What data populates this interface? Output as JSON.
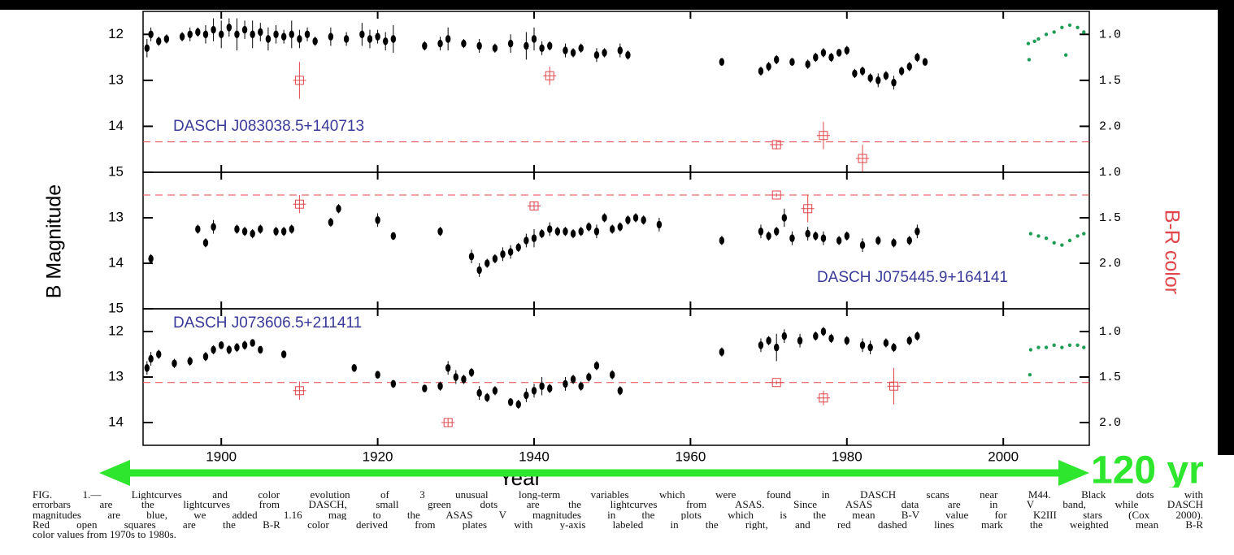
{
  "y_label": "B Magnitude",
  "y2_label": "B-R color",
  "x_label": "Year",
  "arrow_label": "120 yr",
  "caption": [
    "FIG. 1.— Lightcurves and color evolution of 3 unusual long-term variables which were found in DASCH scans near M44. Black dots with",
    "errorbars are the lightcurves from DASCH, small green dots are the lightcurves from ASAS. Since ASAS data are in V band, while DASCH",
    "magnitudes are blue, we added 1.16 mag to the ASAS V magnitudes in the plots which is the mean B-V value for K2III stars (Cox 2000).",
    "Red open squares are the B-R color derived from plates with y-axis labeled in the right, and red dashed lines mark the weighted mean B-R",
    "color values from 1970s to 1980s."
  ],
  "chart_data": [
    {
      "type": "scatter",
      "annotation": "DASCH J083038.5+140713",
      "xlim": [
        1890,
        2011
      ],
      "xticks": [
        1900,
        1920,
        1940,
        1960,
        1980,
        2000
      ],
      "x_tick_labels": false,
      "ylim": [
        15,
        11.5
      ],
      "yticks": [
        12,
        13,
        14,
        15
      ],
      "y2lim": [
        2.5,
        0.75
      ],
      "y2ticks": [
        {
          "value": 1,
          "label": "1.0"
        },
        1.5,
        {
          "value": 2,
          "label": "2.0"
        }
      ],
      "mean_color": 2.17,
      "series": [
        {
          "color": "#000000",
          "kind": "dasch",
          "x": [
            1890.5,
            1891,
            1892,
            1893,
            1895,
            1896,
            1897,
            1898,
            1899,
            1900,
            1901,
            1902,
            1903,
            1904,
            1905,
            1906,
            1907,
            1908,
            1909,
            1910,
            1911,
            1912,
            1914,
            1916,
            1918,
            1919,
            1920,
            1921,
            1922,
            1926,
            1928,
            1929,
            1931,
            1933,
            1935,
            1937,
            1939,
            1940,
            1941,
            1942,
            1944,
            1945,
            1946,
            1948,
            1949,
            1951,
            1952,
            1964,
            1969,
            1970,
            1971,
            1973,
            1975,
            1976,
            1977,
            1978,
            1979,
            1980,
            1981,
            1982,
            1983,
            1984,
            1985,
            1986,
            1987,
            1988,
            1989,
            1990
          ],
          "values": [
            12.3,
            12.0,
            12.15,
            12.1,
            12.05,
            12.0,
            11.95,
            12.0,
            11.9,
            12.0,
            11.85,
            12.0,
            11.9,
            12.0,
            11.95,
            12.1,
            12.0,
            12.05,
            12.0,
            12.1,
            12.0,
            12.15,
            12.05,
            12.1,
            12.0,
            12.1,
            12.05,
            12.15,
            12.1,
            12.25,
            12.2,
            12.1,
            12.2,
            12.25,
            12.3,
            12.2,
            12.25,
            12.1,
            12.3,
            12.25,
            12.35,
            12.4,
            12.3,
            12.45,
            12.4,
            12.35,
            12.45,
            12.6,
            12.8,
            12.7,
            12.55,
            12.6,
            12.65,
            12.5,
            12.4,
            12.5,
            12.4,
            12.35,
            12.85,
            12.8,
            12.95,
            13.0,
            12.9,
            13.05,
            12.8,
            12.7,
            12.5,
            12.6
          ],
          "errors": [
            0.2,
            0.15,
            0.1,
            0.1,
            0.1,
            0.15,
            0.1,
            0.2,
            0.25,
            0.3,
            0.2,
            0.35,
            0.2,
            0.3,
            0.2,
            0.25,
            0.2,
            0.15,
            0.3,
            0.2,
            0.15,
            0.1,
            0.2,
            0.15,
            0.25,
            0.2,
            0.15,
            0.2,
            0.3,
            0.1,
            0.15,
            0.25,
            0.1,
            0.15,
            0.1,
            0.2,
            0.3,
            0.25,
            0.15,
            0.1,
            0.15,
            0.1,
            0.1,
            0.15,
            0.1,
            0.15,
            0.1,
            0.05,
            0.1,
            0.1,
            0.1,
            0.05,
            0.1,
            0.1,
            0.1,
            0.1,
            0.05,
            0.1,
            0.1,
            0.1,
            0.1,
            0.15,
            0.1,
            0.15,
            0.1,
            0.1,
            0.1,
            0.05
          ]
        },
        {
          "color": "#1e9e55",
          "kind": "asas",
          "x": [
            2003.2,
            2003.3,
            2004,
            2004.5,
            2005.5,
            2006.5,
            2007.5,
            2008,
            2008.5,
            2009.5,
            2010.3
          ],
          "values": [
            12.2,
            12.55,
            12.15,
            12.1,
            12.0,
            11.95,
            11.85,
            12.45,
            11.8,
            11.85,
            11.95
          ]
        },
        {
          "color": "#e0464b",
          "kind": "color",
          "axis": "y2",
          "x": [
            1910,
            1942,
            1971,
            1977,
            1982
          ],
          "values": [
            1.5,
            1.45,
            2.2,
            2.1,
            2.35
          ],
          "errors": [
            0.2,
            0.1,
            0.05,
            0.15,
            0.15
          ]
        }
      ]
    },
    {
      "type": "scatter",
      "annotation": "DASCH J075445.9+164141",
      "xlim": [
        1890,
        2011
      ],
      "xticks": [
        1900,
        1920,
        1940,
        1960,
        1980,
        2000
      ],
      "x_tick_labels": false,
      "ylim": [
        15,
        12
      ],
      "yticks": [
        13,
        14,
        15
      ],
      "y2lim": [
        2.5,
        1
      ],
      "y2ticks": [
        {
          "value": 1,
          "label": "1.0"
        },
        1.5,
        {
          "value": 2,
          "label": "2.0"
        }
      ],
      "mean_color": 1.25,
      "series": [
        {
          "color": "#000000",
          "kind": "dasch",
          "x": [
            1891,
            1897,
            1898,
            1899,
            1902,
            1903,
            1904,
            1905,
            1907,
            1908,
            1909,
            1914,
            1915,
            1920,
            1922,
            1928,
            1932,
            1933,
            1934,
            1935,
            1936,
            1937,
            1938,
            1939,
            1940,
            1941,
            1942,
            1943,
            1944,
            1945,
            1946,
            1947,
            1948,
            1949,
            1950,
            1951,
            1952,
            1953,
            1954,
            1956,
            1964,
            1969,
            1970,
            1971,
            1972,
            1973,
            1975,
            1976,
            1977,
            1979,
            1980,
            1982,
            1984,
            1986,
            1988,
            1989
          ],
          "values": [
            13.9,
            13.25,
            13.55,
            13.2,
            13.25,
            13.3,
            13.35,
            13.25,
            13.3,
            13.3,
            13.25,
            13.1,
            12.8,
            13.05,
            13.4,
            13.3,
            13.85,
            14.15,
            14.0,
            13.9,
            13.8,
            13.75,
            13.65,
            13.5,
            13.45,
            13.35,
            13.25,
            13.3,
            13.3,
            13.35,
            13.3,
            13.2,
            13.3,
            13.0,
            13.25,
            13.2,
            13.05,
            13.0,
            13.05,
            13.15,
            13.5,
            13.3,
            13.4,
            13.3,
            13.0,
            13.45,
            13.35,
            13.4,
            13.45,
            13.5,
            13.4,
            13.6,
            13.5,
            13.55,
            13.5,
            13.3
          ],
          "errors": [
            0.1,
            0.1,
            0.1,
            0.15,
            0.1,
            0.1,
            0.1,
            0.1,
            0.1,
            0.1,
            0.1,
            0.1,
            0.1,
            0.15,
            0.05,
            0.1,
            0.15,
            0.15,
            0.1,
            0.1,
            0.15,
            0.15,
            0.1,
            0.15,
            0.2,
            0.1,
            0.15,
            0.1,
            0.1,
            0.1,
            0.1,
            0.1,
            0.15,
            0.1,
            0.1,
            0.1,
            0.1,
            0.1,
            0.1,
            0.15,
            0.1,
            0.15,
            0.1,
            0.1,
            0.2,
            0.15,
            0.15,
            0.1,
            0.15,
            0.1,
            0.1,
            0.15,
            0.1,
            0.1,
            0.1,
            0.15
          ]
        },
        {
          "color": "#1e9e55",
          "kind": "asas",
          "x": [
            2003.5,
            2004.5,
            2005.5,
            2006.5,
            2007.5,
            2008.5,
            2009.5,
            2010.3
          ],
          "values": [
            13.35,
            13.4,
            13.45,
            13.55,
            13.6,
            13.5,
            13.4,
            13.35
          ]
        },
        {
          "color": "#e0464b",
          "kind": "color",
          "axis": "y2",
          "x": [
            1910,
            1940,
            1971,
            1975
          ],
          "values": [
            1.35,
            1.37,
            1.25,
            1.4
          ],
          "errors": [
            0.1,
            0.05,
            0.02,
            0.15
          ]
        }
      ]
    },
    {
      "type": "scatter",
      "annotation": "DASCH J073606.5+211411",
      "xlim": [
        1890,
        2011
      ],
      "xticks": [
        1900,
        1920,
        1940,
        1960,
        1980,
        2000
      ],
      "x_tick_labels": true,
      "ylim": [
        14.5,
        11.5
      ],
      "yticks": [
        12,
        13,
        14
      ],
      "y2lim": [
        2.25,
        0.75
      ],
      "y2ticks": [
        {
          "value": 1,
          "label": "1.0"
        },
        1.5,
        {
          "value": 2,
          "label": "2.0"
        }
      ],
      "mean_color": 1.56,
      "series": [
        {
          "color": "#000000",
          "kind": "dasch",
          "x": [
            1890.5,
            1891,
            1892,
            1894,
            1896,
            1898,
            1899,
            1900,
            1901,
            1902,
            1903,
            1904,
            1905,
            1908,
            1917,
            1920,
            1922,
            1926,
            1928,
            1929,
            1930,
            1931,
            1932,
            1933,
            1934,
            1935,
            1937,
            1938,
            1939,
            1940,
            1941,
            1942,
            1944,
            1945,
            1946,
            1947,
            1948,
            1950,
            1951,
            1964,
            1969,
            1970,
            1971,
            1972,
            1974,
            1976,
            1977,
            1978,
            1980,
            1982,
            1983,
            1985,
            1986,
            1988,
            1989
          ],
          "values": [
            12.8,
            12.6,
            12.5,
            12.7,
            12.65,
            12.55,
            12.4,
            12.3,
            12.4,
            12.35,
            12.3,
            12.25,
            12.4,
            12.5,
            12.8,
            12.95,
            13.15,
            13.25,
            13.2,
            12.8,
            13.0,
            13.05,
            12.9,
            13.35,
            13.45,
            13.3,
            13.55,
            13.6,
            13.4,
            13.3,
            13.2,
            13.25,
            13.15,
            13.05,
            13.2,
            13.0,
            12.75,
            12.95,
            13.3,
            12.45,
            12.3,
            12.2,
            12.35,
            12.1,
            12.2,
            12.1,
            12.0,
            12.15,
            12.2,
            12.3,
            12.35,
            12.25,
            12.35,
            12.2,
            12.1
          ],
          "errors": [
            0.15,
            0.15,
            0.1,
            0.1,
            0.1,
            0.1,
            0.1,
            0.05,
            0.1,
            0.1,
            0.1,
            0.05,
            0.05,
            0.05,
            0.05,
            0.05,
            0.05,
            0.05,
            0.1,
            0.15,
            0.15,
            0.1,
            0.1,
            0.15,
            0.1,
            0.1,
            0.05,
            0.1,
            0.15,
            0.15,
            0.2,
            0.1,
            0.15,
            0.1,
            0.1,
            0.1,
            0.1,
            0.1,
            0.1,
            0.1,
            0.15,
            0.1,
            0.3,
            0.15,
            0.15,
            0.1,
            0.1,
            0.1,
            0.1,
            0.15,
            0.15,
            0.1,
            0.1,
            0.1,
            0.1
          ]
        },
        {
          "color": "#1e9e55",
          "kind": "asas",
          "x": [
            2003.4,
            2003.5,
            2004.5,
            2005.5,
            2006.5,
            2007.5,
            2008.5,
            2009.5,
            2010.3
          ],
          "values": [
            12.95,
            12.4,
            12.35,
            12.35,
            12.3,
            12.35,
            12.3,
            12.3,
            12.35
          ]
        },
        {
          "color": "#e0464b",
          "kind": "color",
          "axis": "y2",
          "x": [
            1910,
            1929,
            1971,
            1977,
            1986
          ],
          "values": [
            1.65,
            2.0,
            1.56,
            1.73,
            1.6
          ],
          "errors": [
            0.1,
            0.05,
            0.02,
            0.08,
            0.2
          ]
        }
      ]
    }
  ]
}
